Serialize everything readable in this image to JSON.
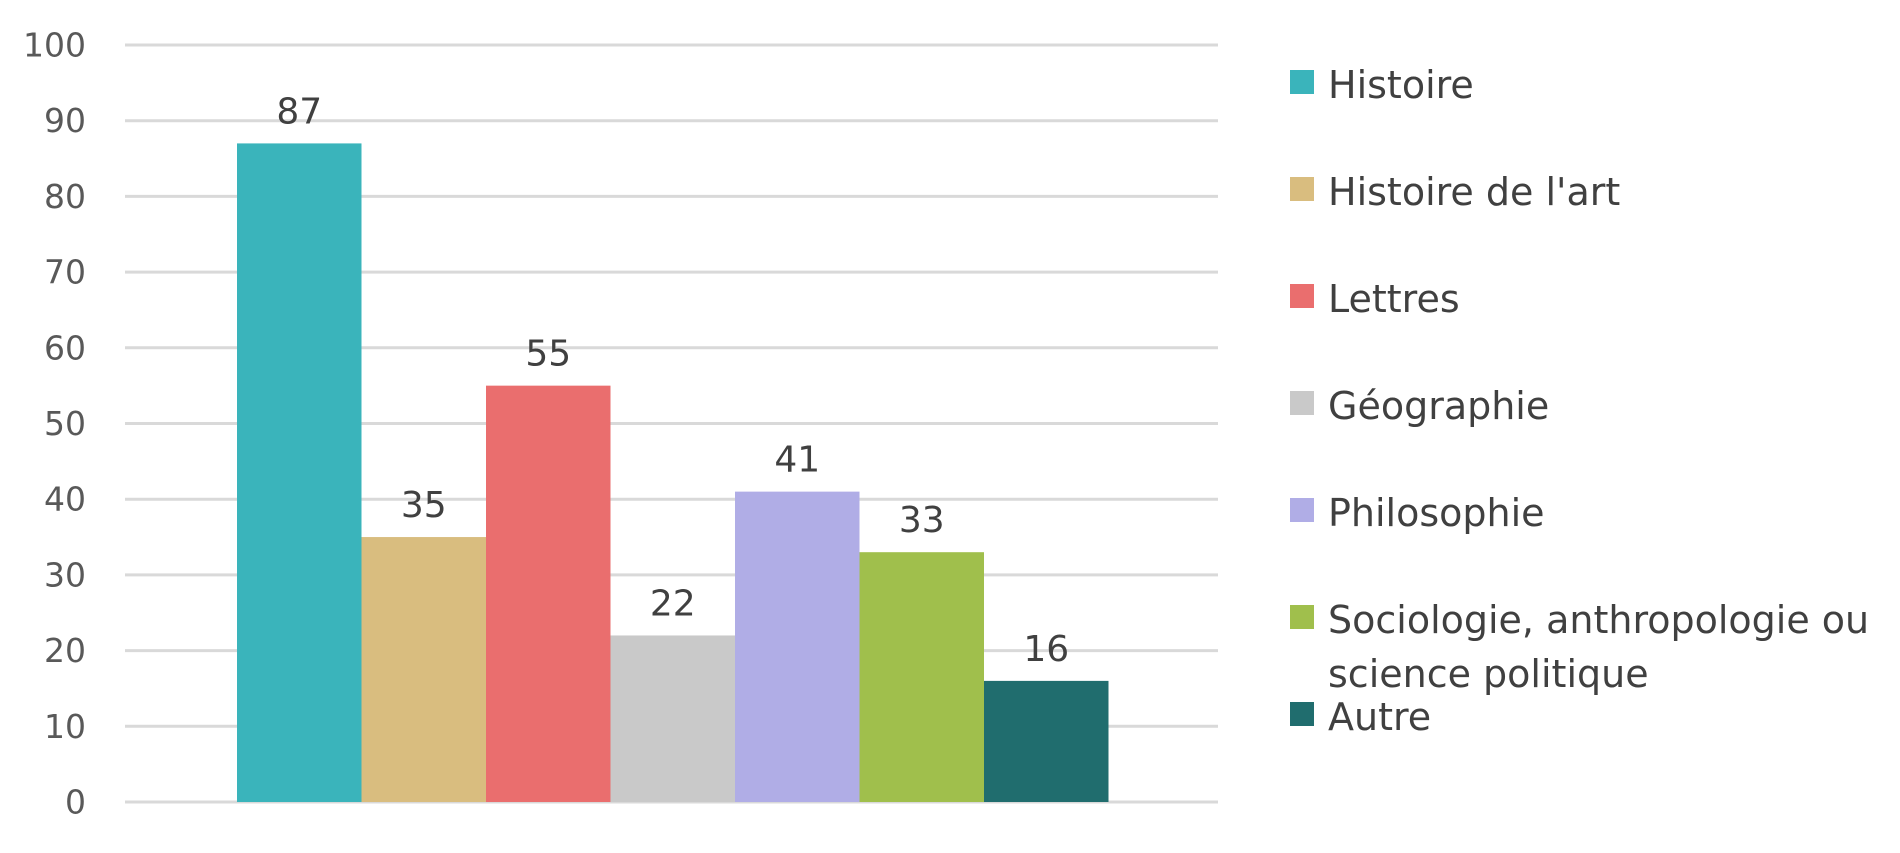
{
  "chart_data": {
    "type": "bar",
    "title": "",
    "xlabel": "",
    "ylabel": "",
    "ylim": [
      0,
      100
    ],
    "yticks": [
      0,
      10,
      20,
      30,
      40,
      50,
      60,
      70,
      80,
      90,
      100
    ],
    "grid": true,
    "legend_position": "right",
    "series": [
      {
        "name": "Histoire",
        "value": 87,
        "color": "#3AB4BB"
      },
      {
        "name": "Histoire de l'art",
        "value": 35,
        "color": "#D9BD7F"
      },
      {
        "name": "Lettres",
        "value": 55,
        "color": "#EA6E6E"
      },
      {
        "name": "Géographie",
        "value": 22,
        "color": "#C9C9C9"
      },
      {
        "name": "Philosophie",
        "value": 41,
        "color": "#B0ADE6"
      },
      {
        "name": "Sociologie, anthropologie ou science politique",
        "value": 33,
        "color": "#A0BF4C"
      },
      {
        "name": "Autre",
        "value": 16,
        "color": "#206D6E"
      }
    ]
  }
}
